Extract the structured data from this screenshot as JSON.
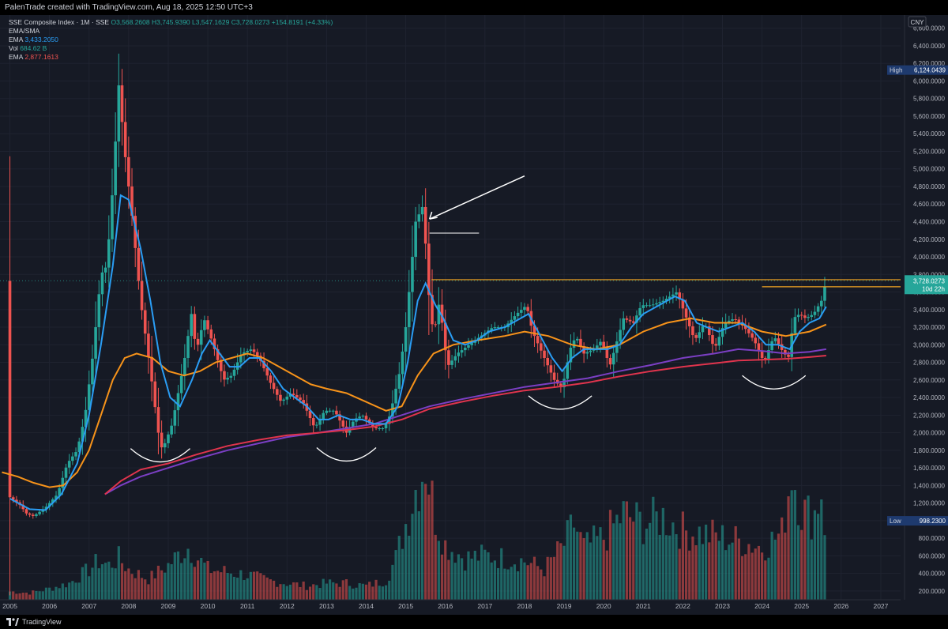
{
  "header": {
    "attribution": "PalenTrade created with TradingView.com, Aug 18, 2025 12:50 UTC+3"
  },
  "legend": {
    "symbol": "SSE Composite Index · 1M · SSE",
    "open": "O3,568.2608",
    "high": "H3,745.9390",
    "low": "L3,547.1629",
    "close": "C3,728.0273",
    "change": "+154.8191 (+4.33%)",
    "ema_sma_label": "EMA/SMA",
    "ema1_label": "EMA",
    "ema1_value": "3,433.2050",
    "vol_label": "Vol",
    "vol_value": "684.62 B",
    "ema2_label": "EMA",
    "ema2_value": "2,877.1613"
  },
  "footer": {
    "brand": "TradingView"
  },
  "colors": {
    "bg": "#161a25",
    "up": "#26a69a",
    "down": "#ef5350",
    "ema_fast": "#2a9df4",
    "ema_mid": "#f7931a",
    "ema_slow": "#e0344d",
    "sma": "#7b3fc4",
    "resistance": "#f5a623"
  },
  "chart_data": {
    "type": "candlestick",
    "currency": "CNY",
    "y_ticks": [
      200,
      400,
      600,
      800,
      1000,
      1200,
      1400,
      1600,
      1800,
      2000,
      2200,
      2400,
      2600,
      2800,
      3000,
      3200,
      3400,
      3600,
      3800,
      4000,
      4200,
      4400,
      4600,
      4800,
      5000,
      5200,
      5400,
      5600,
      5800,
      6000,
      6200,
      6400,
      6600
    ],
    "y_tick_labels": [
      "200.0000",
      "400.0000",
      "600.0000",
      "800.0000",
      "1,000.0000",
      "1,200.0000",
      "1,400.0000",
      "1,600.0000",
      "1,800.0000",
      "2,000.0000",
      "2,200.0000",
      "2,400.0000",
      "2,600.0000",
      "2,800.0000",
      "3,000.0000",
      "3,200.0000",
      "3,400.0000",
      "3,600.0000",
      "3,800.0000",
      "4,000.0000",
      "4,200.0000",
      "4,400.0000",
      "4,600.0000",
      "4,800.0000",
      "5,000.0000",
      "5,200.0000",
      "5,400.0000",
      "5,600.0000",
      "5,800.0000",
      "6,000.0000",
      "6,200.0000",
      "6,400.0000",
      "6,600.0000"
    ],
    "x_labels": [
      "2005",
      "2006",
      "2007",
      "2008",
      "2009",
      "2010",
      "2011",
      "2012",
      "2013",
      "2014",
      "2015",
      "2016",
      "2017",
      "2018",
      "2019",
      "2020",
      "2021",
      "2022",
      "2023",
      "2024",
      "2025",
      "2026",
      "2027"
    ],
    "x_range": [
      2004.75,
      2027.5
    ],
    "y_range": [
      100,
      6750
    ],
    "last_price_label": "3,728.0273",
    "countdown": "10d 22h",
    "high_label": "High",
    "high_value": "6,124.0439",
    "low_label": "Low",
    "low_value": "998.2300",
    "resistance_level": 3740,
    "price_path": [
      [
        2005.0,
        1266
      ],
      [
        2005.25,
        1180
      ],
      [
        2005.42,
        1080
      ],
      [
        2005.6,
        1050
      ],
      [
        2005.9,
        1150
      ],
      [
        2006.2,
        1300
      ],
      [
        2006.45,
        1650
      ],
      [
        2006.7,
        1800
      ],
      [
        2006.9,
        2200
      ],
      [
        2007.1,
        2900
      ],
      [
        2007.3,
        3800
      ],
      [
        2007.45,
        3900
      ],
      [
        2007.6,
        4800
      ],
      [
        2007.75,
        5950
      ],
      [
        2007.9,
        5200
      ],
      [
        2008.1,
        4400
      ],
      [
        2008.3,
        3500
      ],
      [
        2008.55,
        2700
      ],
      [
        2008.75,
        2000
      ],
      [
        2008.85,
        1800
      ],
      [
        2009.1,
        2100
      ],
      [
        2009.4,
        2800
      ],
      [
        2009.6,
        3400
      ],
      [
        2009.7,
        2900
      ],
      [
        2009.9,
        3300
      ],
      [
        2010.1,
        3050
      ],
      [
        2010.4,
        2600
      ],
      [
        2010.6,
        2650
      ],
      [
        2010.85,
        2900
      ],
      [
        2011.1,
        2950
      ],
      [
        2011.3,
        2850
      ],
      [
        2011.6,
        2550
      ],
      [
        2011.85,
        2350
      ],
      [
        2012.1,
        2450
      ],
      [
        2012.4,
        2350
      ],
      [
        2012.7,
        2050
      ],
      [
        2012.95,
        2250
      ],
      [
        2013.2,
        2250
      ],
      [
        2013.5,
        2000
      ],
      [
        2013.7,
        2150
      ],
      [
        2013.9,
        2200
      ],
      [
        2014.2,
        2050
      ],
      [
        2014.45,
        2050
      ],
      [
        2014.6,
        2200
      ],
      [
        2014.85,
        2700
      ],
      [
        2015.0,
        3200
      ],
      [
        2015.25,
        4400
      ],
      [
        2015.45,
        4600
      ],
      [
        2015.55,
        3700
      ],
      [
        2015.7,
        3100
      ],
      [
        2015.85,
        3500
      ],
      [
        2016.05,
        2750
      ],
      [
        2016.3,
        2900
      ],
      [
        2016.6,
        3000
      ],
      [
        2016.9,
        3100
      ],
      [
        2017.2,
        3200
      ],
      [
        2017.5,
        3200
      ],
      [
        2017.8,
        3350
      ],
      [
        2018.05,
        3450
      ],
      [
        2018.2,
        3150
      ],
      [
        2018.5,
        2850
      ],
      [
        2018.75,
        2600
      ],
      [
        2018.95,
        2500
      ],
      [
        2019.15,
        2950
      ],
      [
        2019.3,
        3100
      ],
      [
        2019.5,
        2900
      ],
      [
        2019.75,
        2950
      ],
      [
        2019.95,
        3050
      ],
      [
        2020.15,
        2750
      ],
      [
        2020.5,
        3300
      ],
      [
        2020.75,
        3250
      ],
      [
        2020.95,
        3450
      ],
      [
        2021.2,
        3450
      ],
      [
        2021.5,
        3500
      ],
      [
        2021.85,
        3600
      ],
      [
        2022.05,
        3350
      ],
      [
        2022.3,
        3050
      ],
      [
        2022.55,
        3250
      ],
      [
        2022.8,
        2950
      ],
      [
        2023.05,
        3250
      ],
      [
        2023.3,
        3300
      ],
      [
        2023.55,
        3200
      ],
      [
        2023.8,
        3050
      ],
      [
        2024.05,
        2800
      ],
      [
        2024.3,
        3100
      ],
      [
        2024.55,
        2900
      ],
      [
        2024.7,
        2850
      ],
      [
        2024.78,
        3300
      ],
      [
        2024.95,
        3350
      ],
      [
        2025.1,
        3300
      ],
      [
        2025.3,
        3350
      ],
      [
        2025.5,
        3500
      ],
      [
        2025.62,
        3728
      ]
    ],
    "ema_fast_path": [
      [
        2005.0,
        1250
      ],
      [
        2005.5,
        1130
      ],
      [
        2005.9,
        1120
      ],
      [
        2006.3,
        1300
      ],
      [
        2006.7,
        1650
      ],
      [
        2007.0,
        2200
      ],
      [
        2007.3,
        3000
      ],
      [
        2007.6,
        3900
      ],
      [
        2007.8,
        4700
      ],
      [
        2008.0,
        4650
      ],
      [
        2008.3,
        4100
      ],
      [
        2008.55,
        3500
      ],
      [
        2008.8,
        2800
      ],
      [
        2009.05,
        2400
      ],
      [
        2009.3,
        2300
      ],
      [
        2009.6,
        2600
      ],
      [
        2009.85,
        2900
      ],
      [
        2010.05,
        3050
      ],
      [
        2010.3,
        2900
      ],
      [
        2010.55,
        2750
      ],
      [
        2010.8,
        2750
      ],
      [
        2011.05,
        2850
      ],
      [
        2011.3,
        2850
      ],
      [
        2011.6,
        2700
      ],
      [
        2011.9,
        2500
      ],
      [
        2012.2,
        2400
      ],
      [
        2012.5,
        2300
      ],
      [
        2012.8,
        2150
      ],
      [
        2013.05,
        2150
      ],
      [
        2013.3,
        2200
      ],
      [
        2013.6,
        2150
      ],
      [
        2013.9,
        2150
      ],
      [
        2014.2,
        2100
      ],
      [
        2014.5,
        2100
      ],
      [
        2014.8,
        2300
      ],
      [
        2015.05,
        2800
      ],
      [
        2015.3,
        3500
      ],
      [
        2015.5,
        3700
      ],
      [
        2015.75,
        3450
      ],
      [
        2015.95,
        3300
      ],
      [
        2016.2,
        3050
      ],
      [
        2016.5,
        3000
      ],
      [
        2016.8,
        3050
      ],
      [
        2017.1,
        3150
      ],
      [
        2017.5,
        3200
      ],
      [
        2017.9,
        3300
      ],
      [
        2018.1,
        3350
      ],
      [
        2018.4,
        3100
      ],
      [
        2018.7,
        2850
      ],
      [
        2018.95,
        2700
      ],
      [
        2019.2,
        2850
      ],
      [
        2019.5,
        2950
      ],
      [
        2019.8,
        2950
      ],
      [
        2020.1,
        2950
      ],
      [
        2020.4,
        3000
      ],
      [
        2020.7,
        3200
      ],
      [
        2021.0,
        3350
      ],
      [
        2021.4,
        3450
      ],
      [
        2021.8,
        3550
      ],
      [
        2022.05,
        3500
      ],
      [
        2022.35,
        3250
      ],
      [
        2022.6,
        3200
      ],
      [
        2022.9,
        3150
      ],
      [
        2023.2,
        3200
      ],
      [
        2023.5,
        3250
      ],
      [
        2023.8,
        3150
      ],
      [
        2024.1,
        3000
      ],
      [
        2024.4,
        3000
      ],
      [
        2024.7,
        2950
      ],
      [
        2024.95,
        3150
      ],
      [
        2025.2,
        3250
      ],
      [
        2025.45,
        3300
      ],
      [
        2025.62,
        3433
      ]
    ],
    "ema_mid_path": [
      [
        2004.8,
        1550
      ],
      [
        2005.2,
        1500
      ],
      [
        2005.6,
        1430
      ],
      [
        2006.0,
        1380
      ],
      [
        2006.35,
        1400
      ],
      [
        2006.7,
        1550
      ],
      [
        2007.0,
        1800
      ],
      [
        2007.3,
        2200
      ],
      [
        2007.6,
        2600
      ],
      [
        2007.9,
        2850
      ],
      [
        2008.2,
        2900
      ],
      [
        2008.6,
        2850
      ],
      [
        2009.0,
        2700
      ],
      [
        2009.4,
        2650
      ],
      [
        2009.8,
        2700
      ],
      [
        2010.2,
        2800
      ],
      [
        2010.6,
        2850
      ],
      [
        2011.0,
        2900
      ],
      [
        2011.4,
        2850
      ],
      [
        2011.8,
        2750
      ],
      [
        2012.2,
        2650
      ],
      [
        2012.6,
        2550
      ],
      [
        2013.0,
        2500
      ],
      [
        2013.5,
        2450
      ],
      [
        2014.0,
        2350
      ],
      [
        2014.5,
        2250
      ],
      [
        2014.9,
        2300
      ],
      [
        2015.3,
        2650
      ],
      [
        2015.7,
        2900
      ],
      [
        2016.2,
        3000
      ],
      [
        2016.8,
        3050
      ],
      [
        2017.5,
        3100
      ],
      [
        2018.0,
        3150
      ],
      [
        2018.6,
        3100
      ],
      [
        2019.2,
        3000
      ],
      [
        2019.8,
        2950
      ],
      [
        2020.4,
        3000
      ],
      [
        2021.0,
        3150
      ],
      [
        2021.6,
        3250
      ],
      [
        2022.2,
        3300
      ],
      [
        2022.8,
        3250
      ],
      [
        2023.4,
        3250
      ],
      [
        2024.0,
        3150
      ],
      [
        2024.6,
        3100
      ],
      [
        2025.2,
        3150
      ],
      [
        2025.62,
        3230
      ]
    ],
    "sma_path": [
      [
        2007.4,
        1300
      ],
      [
        2007.8,
        1400
      ],
      [
        2008.3,
        1500
      ],
      [
        2009.0,
        1600
      ],
      [
        2009.7,
        1700
      ],
      [
        2010.5,
        1800
      ],
      [
        2011.3,
        1880
      ],
      [
        2012.0,
        1950
      ],
      [
        2012.8,
        2000
      ],
      [
        2013.5,
        2050
      ],
      [
        2014.2,
        2100
      ],
      [
        2014.9,
        2200
      ],
      [
        2015.6,
        2300
      ],
      [
        2016.4,
        2380
      ],
      [
        2017.2,
        2450
      ],
      [
        2018.0,
        2520
      ],
      [
        2018.8,
        2570
      ],
      [
        2019.6,
        2620
      ],
      [
        2020.4,
        2700
      ],
      [
        2021.2,
        2770
      ],
      [
        2022.0,
        2850
      ],
      [
        2022.8,
        2900
      ],
      [
        2023.4,
        2950
      ],
      [
        2024.0,
        2930
      ],
      [
        2024.6,
        2900
      ],
      [
        2025.2,
        2920
      ],
      [
        2025.62,
        2950
      ]
    ],
    "ema_slow_path": [
      [
        2007.4,
        1300
      ],
      [
        2007.8,
        1450
      ],
      [
        2008.3,
        1580
      ],
      [
        2009.0,
        1650
      ],
      [
        2009.7,
        1750
      ],
      [
        2010.5,
        1850
      ],
      [
        2011.3,
        1920
      ],
      [
        2012.0,
        1970
      ],
      [
        2012.8,
        2000
      ],
      [
        2013.5,
        2030
      ],
      [
        2014.2,
        2070
      ],
      [
        2014.9,
        2150
      ],
      [
        2015.6,
        2270
      ],
      [
        2016.4,
        2350
      ],
      [
        2017.2,
        2420
      ],
      [
        2018.0,
        2480
      ],
      [
        2018.8,
        2520
      ],
      [
        2019.6,
        2570
      ],
      [
        2020.4,
        2640
      ],
      [
        2021.2,
        2700
      ],
      [
        2022.0,
        2750
      ],
      [
        2022.8,
        2790
      ],
      [
        2023.4,
        2820
      ],
      [
        2024.0,
        2830
      ],
      [
        2024.6,
        2840
      ],
      [
        2025.2,
        2860
      ],
      [
        2025.62,
        2877
      ]
    ],
    "volume_bars": [
      [
        2005.0,
        6
      ],
      [
        2005.5,
        5
      ],
      [
        2006.0,
        8
      ],
      [
        2006.5,
        12
      ],
      [
        2007.0,
        22
      ],
      [
        2007.25,
        28
      ],
      [
        2007.5,
        25
      ],
      [
        2007.75,
        30
      ],
      [
        2008.0,
        22
      ],
      [
        2008.5,
        15
      ],
      [
        2009.0,
        25
      ],
      [
        2009.25,
        32
      ],
      [
        2009.5,
        38
      ],
      [
        2009.75,
        30
      ],
      [
        2010.0,
        22
      ],
      [
        2010.5,
        20
      ],
      [
        2011.0,
        18
      ],
      [
        2011.5,
        14
      ],
      [
        2012.0,
        12
      ],
      [
        2012.5,
        10
      ],
      [
        2013.0,
        12
      ],
      [
        2013.5,
        12
      ],
      [
        2014.0,
        10
      ],
      [
        2014.5,
        14
      ],
      [
        2014.75,
        30
      ],
      [
        2015.0,
        55
      ],
      [
        2015.25,
        80
      ],
      [
        2015.5,
        100
      ],
      [
        2015.75,
        60
      ],
      [
        2016.0,
        40
      ],
      [
        2016.5,
        30
      ],
      [
        2017.0,
        32
      ],
      [
        2017.5,
        30
      ],
      [
        2018.0,
        28
      ],
      [
        2018.5,
        22
      ],
      [
        2019.0,
        40
      ],
      [
        2019.25,
        55
      ],
      [
        2019.5,
        38
      ],
      [
        2020.0,
        45
      ],
      [
        2020.5,
        62
      ],
      [
        2021.0,
        55
      ],
      [
        2021.5,
        60
      ],
      [
        2022.0,
        50
      ],
      [
        2022.5,
        48
      ],
      [
        2023.0,
        45
      ],
      [
        2023.5,
        42
      ],
      [
        2024.0,
        38
      ],
      [
        2024.5,
        48
      ],
      [
        2024.75,
        95
      ],
      [
        2025.0,
        65
      ],
      [
        2025.3,
        60
      ],
      [
        2025.5,
        80
      ],
      [
        2025.62,
        45
      ]
    ]
  }
}
